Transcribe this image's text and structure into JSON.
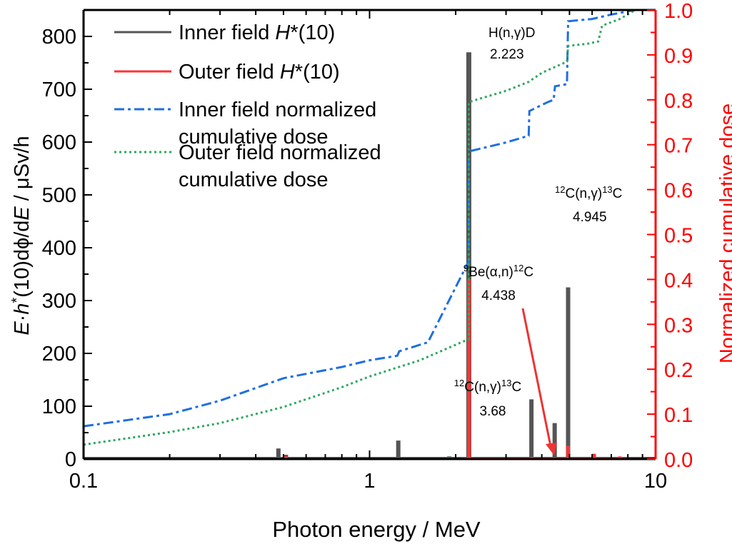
{
  "chart_data": {
    "type": "bar+line",
    "xlabel": "Photon energy / MeV",
    "ylabel_parts": [
      "E",
      "·",
      "h",
      "*",
      "(10)dϕ/d",
      "E",
      " / μSv/h"
    ],
    "y2label": "Normalized cumulative dose",
    "xscale": "log",
    "xlim": [
      0.1,
      10
    ],
    "xticks": [
      0.1,
      1,
      10
    ],
    "xticklabels": [
      "0.1",
      "1",
      "10"
    ],
    "ylim": [
      0,
      850
    ],
    "yticks": [
      0,
      100,
      200,
      300,
      400,
      500,
      600,
      700,
      800
    ],
    "y2lim": [
      0,
      1.0
    ],
    "y2ticks": [
      "0.0",
      "0.1",
      "0.2",
      "0.3",
      "0.4",
      "0.5",
      "0.6",
      "0.7",
      "0.8",
      "0.9",
      "1.0"
    ],
    "colors": {
      "inner": "#555555",
      "outer": "#ff3333",
      "inner_cum": "#1f6fe0",
      "outer_cum": "#2ea860",
      "right_axis": "#ff0000"
    },
    "legend": {
      "placement": "top-left",
      "entries": [
        {
          "text": "Inner field ",
          "italic": "H",
          "suffix": "*(10)",
          "style": "solid",
          "color": "#555555"
        },
        {
          "text": "Outer field ",
          "italic": "H",
          "suffix": "*(10)",
          "style": "solid",
          "color": "#ff3333"
        },
        {
          "text": "Inner field normalized",
          "line2": "cumulative dose",
          "style": "dashdot",
          "color": "#1f6fe0"
        },
        {
          "text": "Outer field normalized",
          "line2": "cumulative dose",
          "style": "dotted",
          "color": "#2ea860"
        }
      ]
    },
    "series": [
      {
        "name": "Inner field H*(10)",
        "kind": "bars",
        "axis": "left",
        "x": [
          0.25,
          0.48,
          0.51,
          0.8,
          1.26,
          1.9,
          2.223,
          2.6,
          3.2,
          3.68,
          4.438,
          4.945
        ],
        "y": [
          2,
          20,
          8,
          3,
          35,
          5,
          770,
          3,
          4,
          113,
          68,
          325
        ]
      },
      {
        "name": "Outer field H*(10)",
        "kind": "bars",
        "axis": "right-scaled-left",
        "x": [
          0.51,
          2.223,
          3.7,
          4.945,
          6.1,
          7.5
        ],
        "y": [
          5,
          340,
          4,
          25,
          10,
          5
        ]
      },
      {
        "name": "Inner field normalized cumulative dose",
        "kind": "line",
        "axis": "right",
        "x": [
          0.1,
          0.2,
          0.3,
          0.5,
          0.8,
          1.0,
          1.25,
          1.27,
          1.6,
          2.22,
          2.223,
          3.0,
          3.6,
          3.62,
          4.2,
          4.4,
          4.45,
          4.9,
          4.945,
          6.0,
          7.0,
          8.5,
          10
        ],
        "y": [
          0.073,
          0.1,
          0.13,
          0.18,
          0.205,
          0.22,
          0.23,
          0.24,
          0.26,
          0.44,
          0.685,
          0.705,
          0.72,
          0.775,
          0.795,
          0.8,
          0.83,
          0.835,
          0.975,
          0.98,
          0.99,
          1.0,
          1.0
        ]
      },
      {
        "name": "Outer field normalized cumulative dose",
        "kind": "line",
        "axis": "right",
        "x": [
          0.1,
          0.2,
          0.3,
          0.5,
          0.8,
          1.0,
          1.5,
          2.22,
          2.223,
          3.0,
          3.6,
          4.0,
          4.9,
          4.945,
          5.8,
          6.3,
          6.5,
          7.5,
          8.5,
          10
        ],
        "y": [
          0.032,
          0.06,
          0.08,
          0.116,
          0.16,
          0.184,
          0.22,
          0.267,
          0.795,
          0.82,
          0.84,
          0.86,
          0.885,
          0.92,
          0.925,
          0.93,
          0.965,
          0.98,
          1.0,
          1.0
        ]
      }
    ],
    "annotations": [
      {
        "label": "H(n,γ)D",
        "value": "2.223"
      },
      {
        "label_sup1": "12",
        "label_mid": "C(n,γ)",
        "label_sup2": "13",
        "label_end": "C",
        "value": "4.945"
      },
      {
        "label_sup1": "9",
        "label_mid": "Be(α,n)",
        "label_sup2": "12",
        "label_end": "C",
        "value": "4.438"
      },
      {
        "label_sup1": "12",
        "label_mid": "C(n,γ)",
        "label_sup2": "13",
        "label_end": "C",
        "value": "3.68"
      }
    ]
  }
}
